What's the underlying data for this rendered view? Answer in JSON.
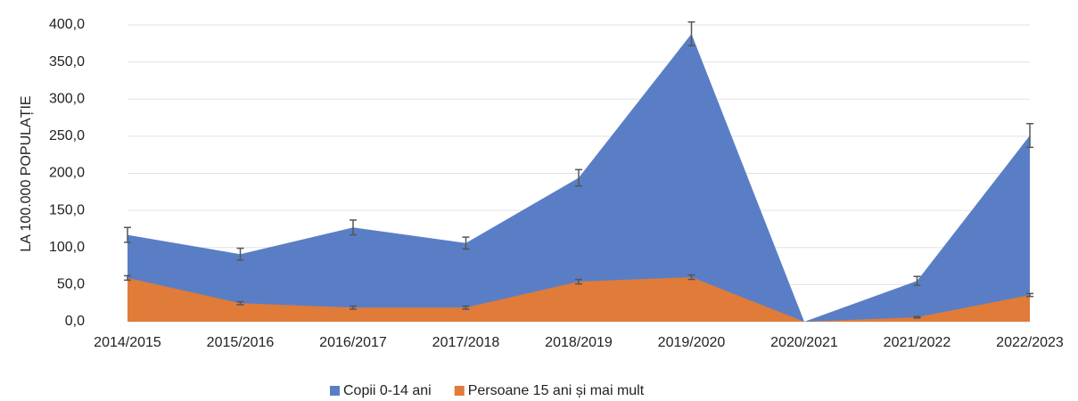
{
  "chart_data": {
    "type": "area",
    "y_label": "LA 100.000 POPULAȚIE",
    "categories": [
      "2014/2015",
      "2015/2016",
      "2016/2017",
      "2017/2018",
      "2018/2019",
      "2019/2020",
      "2020/2021",
      "2021/2022",
      "2022/2023"
    ],
    "series": [
      {
        "name": "Copii 0-14 ani",
        "color": "#5a7ec6",
        "values": [
          117,
          91,
          127,
          106,
          194,
          388,
          0,
          55,
          251
        ],
        "errors": [
          10,
          8,
          10,
          8,
          11,
          16,
          null,
          6,
          16
        ]
      },
      {
        "name": "Persoane 15 ani și mai mult",
        "color": "#e07b39",
        "values": [
          59,
          25,
          19,
          19,
          54,
          60,
          0,
          6,
          36
        ],
        "errors": [
          3,
          2,
          2,
          2,
          3,
          3,
          null,
          1,
          2
        ]
      }
    ],
    "ylim": [
      0,
      400
    ],
    "yticks": [
      {
        "value": 0,
        "label": "0,0"
      },
      {
        "value": 50,
        "label": "50,0"
      },
      {
        "value": 100,
        "label": "100,0"
      },
      {
        "value": 150,
        "label": "150,0"
      },
      {
        "value": 200,
        "label": "200,0"
      },
      {
        "value": 250,
        "label": "250,0"
      },
      {
        "value": 300,
        "label": "300,0"
      },
      {
        "value": 350,
        "label": "350,0"
      },
      {
        "value": 400,
        "label": "400,0"
      }
    ],
    "grid": true,
    "legend": "bottom"
  }
}
